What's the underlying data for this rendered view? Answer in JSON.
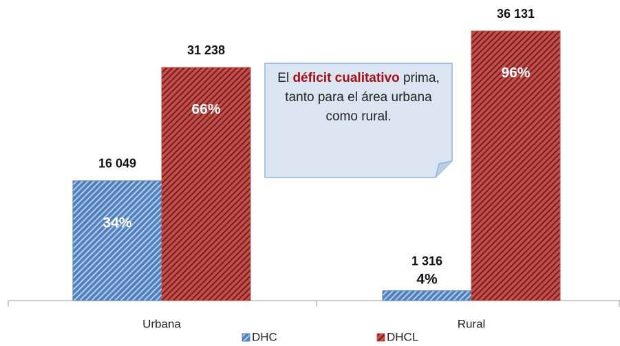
{
  "chart_data": {
    "type": "bar",
    "categories": [
      "Urbana",
      "Rural"
    ],
    "series": [
      {
        "name": "DHC",
        "color": "#4f81bd",
        "values": [
          16049,
          1316
        ],
        "value_labels": [
          "16 049",
          "1 316"
        ],
        "share_labels": [
          "34%",
          "4%"
        ]
      },
      {
        "name": "DHCL",
        "color": "#c0504d",
        "values": [
          31238,
          36131
        ],
        "value_labels": [
          "31 238",
          "36 131"
        ],
        "share_labels": [
          "66%",
          "96%"
        ]
      }
    ],
    "annotation": {
      "before": "El",
      "emphasis": "déficit cualitativo",
      "after": "prima, tanto para el área urbana como rural."
    },
    "legend": "bottom"
  }
}
